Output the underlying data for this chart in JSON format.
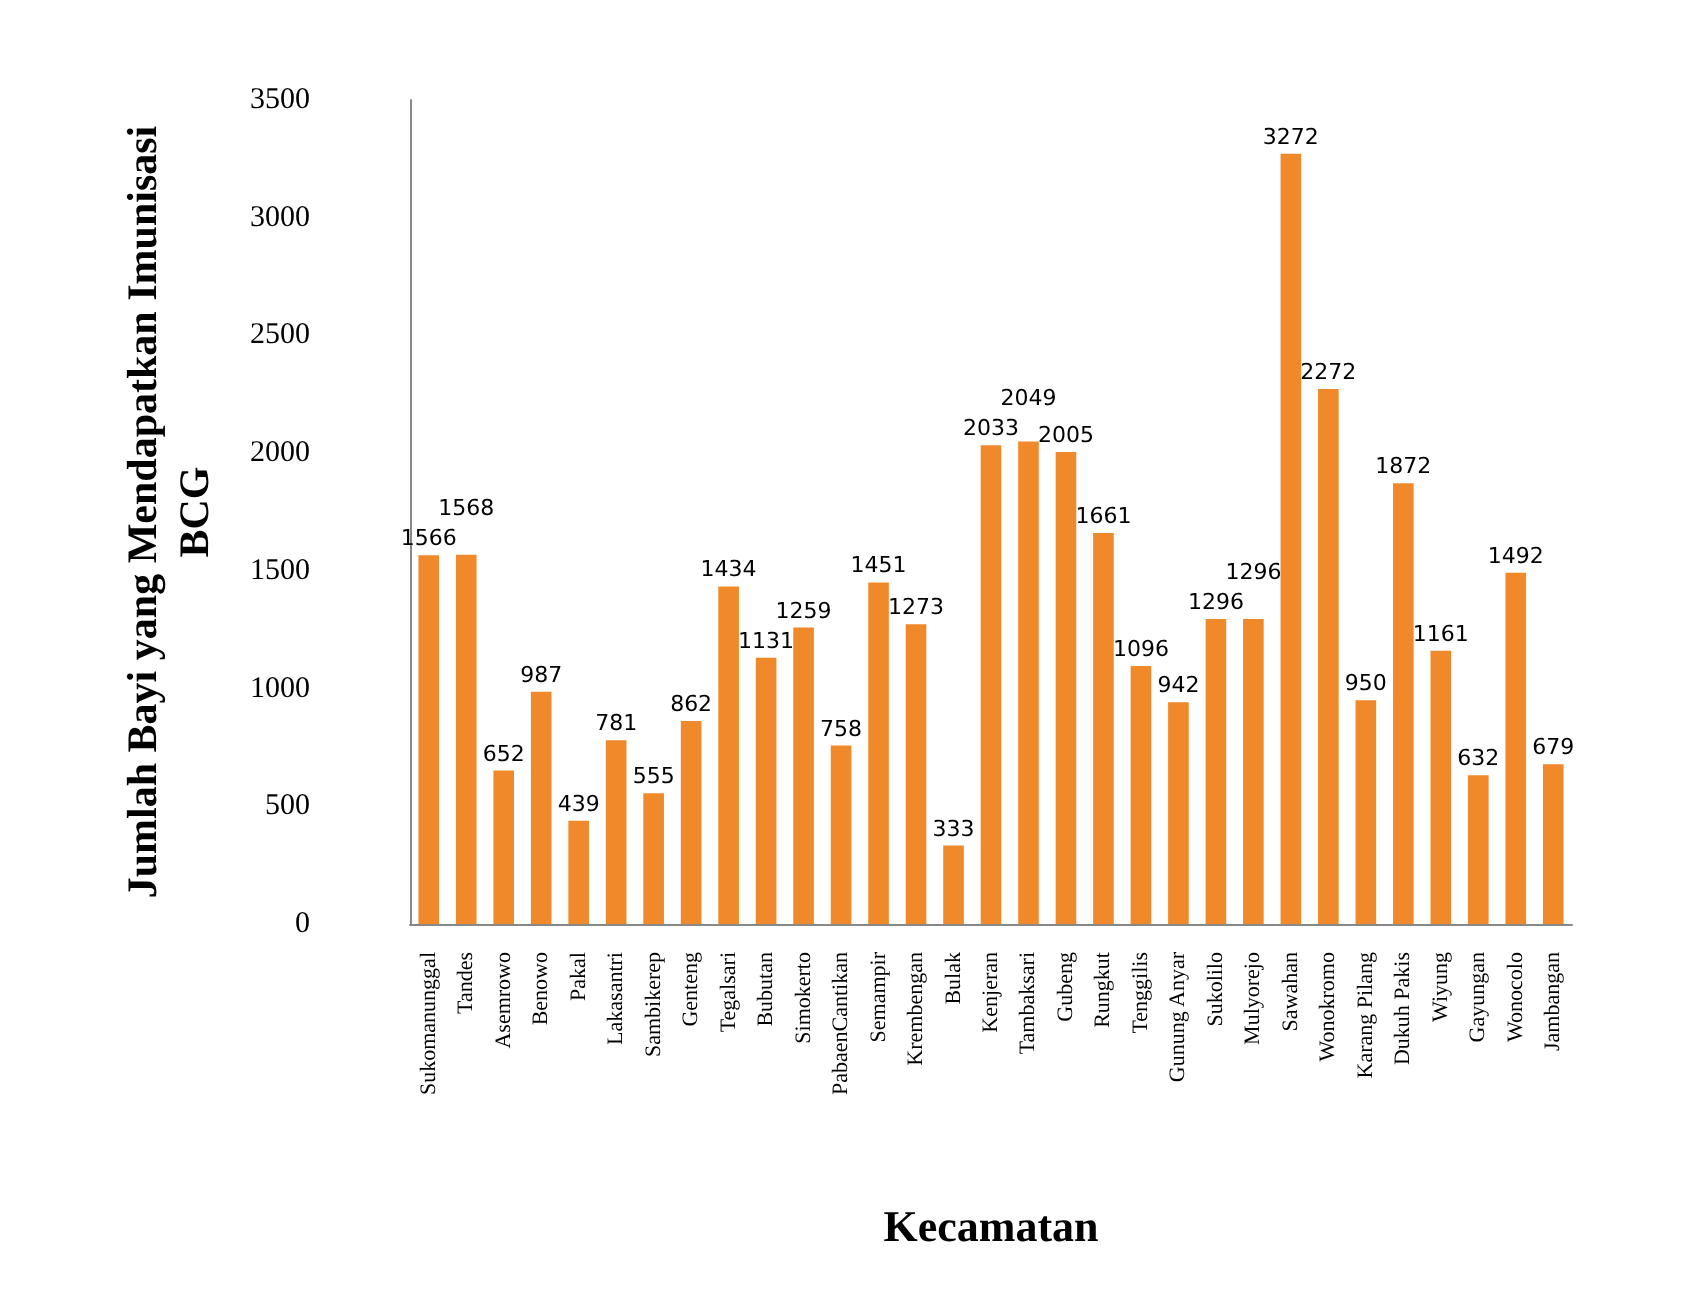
{
  "chart_data": {
    "type": "bar",
    "xlabel": "Kecamatan",
    "ylabel": "Jumlah Bayi yang Mendapatkan Imunisasi\nBCG",
    "categories": [
      "Sukomanunggal",
      "Tandes",
      "Asemrowo",
      "Benowo",
      "Pakal",
      "Lakasantri",
      "Sambikerep",
      "Genteng",
      "Tegalsari",
      "Bubutan",
      "Simokerto",
      "PabaenCantikan",
      "Semampir",
      "Krembengan",
      "Bulak",
      "Kenjeran",
      "Tambaksari",
      "Gubeng",
      "Rungkut",
      "Tenggilis",
      "Gunung Anyar",
      "Sukolilo",
      "Mulyorejo",
      "Sawahan",
      "Wonokromo",
      "Karang Pilang",
      "Dukuh Pakis",
      "Wiyung",
      "Gayungan",
      "Wonocolo",
      "Jambangan"
    ],
    "values": [
      1566,
      1568,
      652,
      987,
      439,
      781,
      555,
      862,
      1434,
      1131,
      1259,
      758,
      1451,
      1273,
      333,
      2033,
      2049,
      2005,
      1661,
      1096,
      942,
      1296,
      1296,
      3272,
      2272,
      950,
      1872,
      1161,
      632,
      1492,
      679
    ],
    "color": "#f0892a",
    "ylim": [
      0,
      3500
    ],
    "yticks": [
      0,
      500,
      1000,
      1500,
      2000,
      2500,
      3000,
      3500
    ],
    "grid": false,
    "data_labels": true
  }
}
